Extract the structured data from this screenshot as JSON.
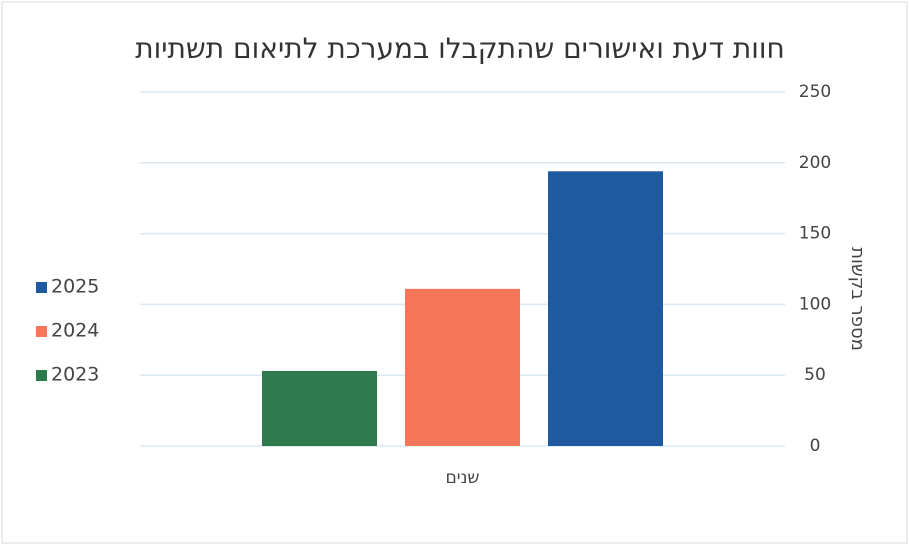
{
  "chart_data": {
    "type": "bar",
    "title": "חוות דעת ואישורים שהתקבלו במערכת לתיאום תשתיות",
    "x_label": "שנים",
    "y_label": "מספר בקשות",
    "categories": [
      null
    ],
    "series": [
      {
        "name": "2023",
        "color": "#2f7a4c",
        "values": [
          53
        ]
      },
      {
        "name": "2024",
        "color": "#f4775a",
        "values": [
          111
        ]
      },
      {
        "name": "2025",
        "color": "#1f5aa0",
        "values": [
          194
        ]
      }
    ],
    "ylim": [
      0,
      250
    ],
    "yticks": [
      0,
      50,
      100,
      150,
      200,
      250
    ],
    "grid": true,
    "y_axis_side": "right",
    "legend": "left"
  }
}
